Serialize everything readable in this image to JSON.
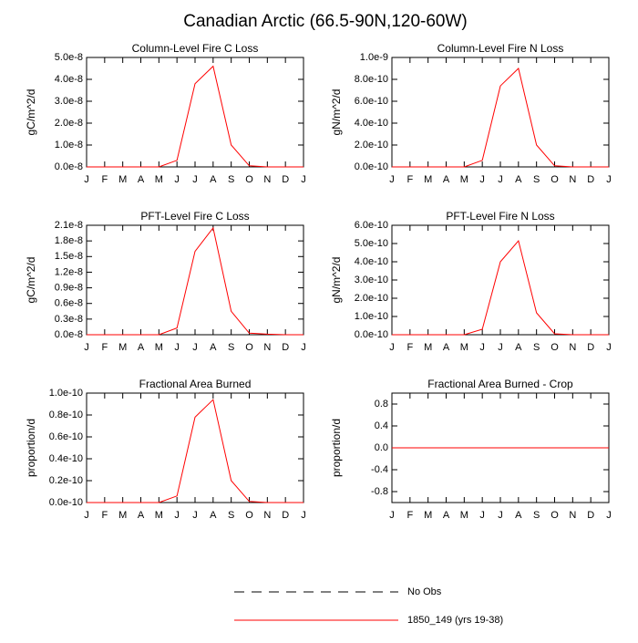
{
  "title": "Canadian Arctic (66.5-90N,120-60W)",
  "chart_data": [
    {
      "type": "line",
      "title": "Column-Level Fire C Loss",
      "ylabel": "gC/m^2/d",
      "categories": [
        "J",
        "F",
        "M",
        "A",
        "M",
        "J",
        "J",
        "A",
        "S",
        "O",
        "N",
        "D",
        "J"
      ],
      "values": [
        0,
        0,
        0,
        0,
        0,
        3e-09,
        3.8e-08,
        4.6e-08,
        1e-08,
        5e-10,
        0,
        0,
        0
      ],
      "color": "#ff0000",
      "ylim": [
        0,
        5e-08
      ],
      "yticks": [
        {
          "value": 0,
          "label": "0.0e-8"
        },
        {
          "value": 1e-08,
          "label": "1.0e-8"
        },
        {
          "value": 2e-08,
          "label": "2.0e-8"
        },
        {
          "value": 3e-08,
          "label": "3.0e-8"
        },
        {
          "value": 4e-08,
          "label": "4.0e-8"
        },
        {
          "value": 5e-08,
          "label": "5.0e-8"
        }
      ]
    },
    {
      "type": "line",
      "title": "Column-Level Fire N Loss",
      "ylabel": "gN/m^2/d",
      "categories": [
        "J",
        "F",
        "M",
        "A",
        "M",
        "J",
        "J",
        "A",
        "S",
        "O",
        "N",
        "D",
        "J"
      ],
      "values": [
        0,
        0,
        0,
        0,
        0,
        6e-11,
        7.4e-10,
        9e-10,
        2e-10,
        1e-11,
        0,
        0,
        0
      ],
      "color": "#ff0000",
      "ylim": [
        0,
        1e-09
      ],
      "yticks": [
        {
          "value": 0,
          "label": "0.0e-10"
        },
        {
          "value": 2e-10,
          "label": "2.0e-10"
        },
        {
          "value": 4e-10,
          "label": "4.0e-10"
        },
        {
          "value": 6e-10,
          "label": "6.0e-10"
        },
        {
          "value": 8e-10,
          "label": "8.0e-10"
        },
        {
          "value": 1e-09,
          "label": "1.0e-9"
        }
      ]
    },
    {
      "type": "line",
      "title": "PFT-Level Fire C Loss",
      "ylabel": "gC/m^2/d",
      "categories": [
        "J",
        "F",
        "M",
        "A",
        "M",
        "J",
        "J",
        "A",
        "S",
        "O",
        "N",
        "D",
        "J"
      ],
      "values": [
        0,
        0,
        0,
        0,
        0,
        1.3e-09,
        1.6e-08,
        2.05e-08,
        4.5e-09,
        3e-10,
        1e-10,
        0,
        0
      ],
      "color": "#ff0000",
      "ylim": [
        0,
        2.1e-08
      ],
      "yticks": [
        {
          "value": 0,
          "label": "0.0e-8"
        },
        {
          "value": 3e-09,
          "label": "0.3e-8"
        },
        {
          "value": 6e-09,
          "label": "0.6e-8"
        },
        {
          "value": 9e-09,
          "label": "0.9e-8"
        },
        {
          "value": 1.2e-08,
          "label": "1.2e-8"
        },
        {
          "value": 1.5e-08,
          "label": "1.5e-8"
        },
        {
          "value": 1.8e-08,
          "label": "1.8e-8"
        },
        {
          "value": 2.1e-08,
          "label": "2.1e-8"
        }
      ]
    },
    {
      "type": "line",
      "title": "PFT-Level Fire N Loss",
      "ylabel": "gN/m^2/d",
      "categories": [
        "J",
        "F",
        "M",
        "A",
        "M",
        "J",
        "J",
        "A",
        "S",
        "O",
        "N",
        "D",
        "J"
      ],
      "values": [
        0,
        0,
        0,
        0,
        0,
        3e-11,
        4e-10,
        5.15e-10,
        1.2e-10,
        5e-12,
        0,
        0,
        0
      ],
      "color": "#ff0000",
      "ylim": [
        0,
        6e-10
      ],
      "yticks": [
        {
          "value": 0,
          "label": "0.0e-10"
        },
        {
          "value": 1e-10,
          "label": "1.0e-10"
        },
        {
          "value": 2e-10,
          "label": "2.0e-10"
        },
        {
          "value": 3e-10,
          "label": "3.0e-10"
        },
        {
          "value": 4e-10,
          "label": "4.0e-10"
        },
        {
          "value": 5e-10,
          "label": "5.0e-10"
        },
        {
          "value": 6e-10,
          "label": "6.0e-10"
        }
      ]
    },
    {
      "type": "line",
      "title": "Fractional Area Burned",
      "ylabel": "proportion/d",
      "categories": [
        "J",
        "F",
        "M",
        "A",
        "M",
        "J",
        "J",
        "A",
        "S",
        "O",
        "N",
        "D",
        "J"
      ],
      "values": [
        0,
        0,
        0,
        0,
        0,
        6e-12,
        7.8e-11,
        9.4e-11,
        2e-11,
        1e-12,
        0,
        0,
        0
      ],
      "color": "#ff0000",
      "ylim": [
        0,
        1e-10
      ],
      "yticks": [
        {
          "value": 0,
          "label": "0.0e-10"
        },
        {
          "value": 2e-11,
          "label": "0.2e-10"
        },
        {
          "value": 4e-11,
          "label": "0.4e-10"
        },
        {
          "value": 6e-11,
          "label": "0.6e-10"
        },
        {
          "value": 8e-11,
          "label": "0.8e-10"
        },
        {
          "value": 1e-10,
          "label": "1.0e-10"
        }
      ]
    },
    {
      "type": "line",
      "title": "Fractional Area Burned - Crop",
      "ylabel": "proportion/d",
      "categories": [
        "J",
        "F",
        "M",
        "A",
        "M",
        "J",
        "J",
        "A",
        "S",
        "O",
        "N",
        "D",
        "J"
      ],
      "values": [
        0,
        0,
        0,
        0,
        0,
        0,
        0,
        0,
        0,
        0,
        0,
        0,
        0
      ],
      "color": "#ff0000",
      "ylim": [
        -1,
        1
      ],
      "yticks": [
        -0.8,
        -0.4,
        {
          "value": 0,
          "label": "0.0"
        },
        0.4,
        0.8
      ]
    }
  ],
  "legend": [
    {
      "name": "No Obs",
      "color": "#000000",
      "dashed": true
    },
    {
      "name": "1850_149 (yrs 19-38)",
      "color": "#ff0000",
      "dashed": false
    }
  ]
}
